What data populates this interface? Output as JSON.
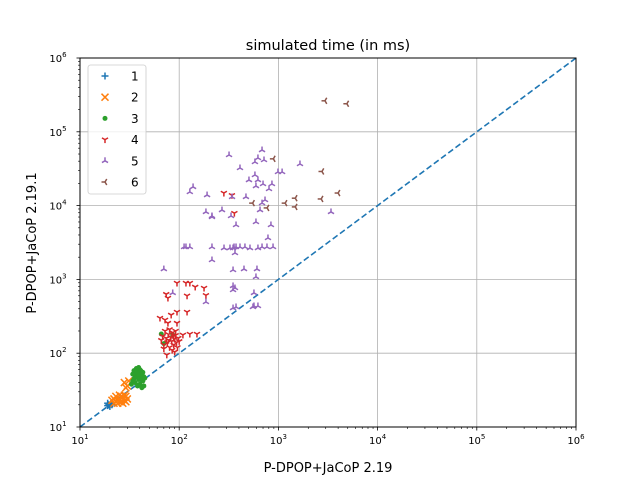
{
  "chart_data": {
    "type": "scatter",
    "title": "simulated time (in ms)",
    "xlabel": "P-DPOP+JaCoP 2.19",
    "ylabel": "P-DPOP+JaCoP 2.19.1",
    "xscale": "log",
    "yscale": "log",
    "xlim": [
      10,
      1000000
    ],
    "ylim": [
      10,
      1000000
    ],
    "grid": true,
    "legend_position": "top-left",
    "x_ticks": [
      {
        "value": 10,
        "base": "10",
        "exp": "1"
      },
      {
        "value": 100,
        "base": "10",
        "exp": "2"
      },
      {
        "value": 1000,
        "base": "10",
        "exp": "3"
      },
      {
        "value": 10000,
        "base": "10",
        "exp": "4"
      },
      {
        "value": 100000,
        "base": "10",
        "exp": "5"
      },
      {
        "value": 1000000,
        "base": "10",
        "exp": "6"
      }
    ],
    "y_ticks": [
      {
        "value": 10,
        "base": "10",
        "exp": "1"
      },
      {
        "value": 100,
        "base": "10",
        "exp": "2"
      },
      {
        "value": 1000,
        "base": "10",
        "exp": "3"
      },
      {
        "value": 10000,
        "base": "10",
        "exp": "4"
      },
      {
        "value": 100000,
        "base": "10",
        "exp": "5"
      },
      {
        "value": 1000000,
        "base": "10",
        "exp": "6"
      }
    ],
    "reference_line": {
      "style": "dashed",
      "color": "#1f77b4",
      "x": [
        10,
        1000000
      ],
      "y": [
        10,
        1000000
      ]
    },
    "series": [
      {
        "name": "1",
        "marker": "plus",
        "color": "#1f77b4",
        "points": [
          [
            19,
            19.5
          ],
          [
            19.5,
            20
          ],
          [
            20,
            19
          ],
          [
            20.5,
            20.5
          ],
          [
            19,
            21
          ],
          [
            21,
            20
          ]
        ]
      },
      {
        "name": "2",
        "marker": "x",
        "color": "#ff7f0e",
        "points": [
          [
            22,
            21
          ],
          [
            23,
            22
          ],
          [
            24,
            23
          ],
          [
            25,
            24
          ],
          [
            26,
            22
          ],
          [
            27,
            25
          ],
          [
            28,
            23
          ],
          [
            23,
            26
          ],
          [
            25,
            27
          ],
          [
            29,
            26
          ],
          [
            30,
            24
          ],
          [
            22,
            24
          ],
          [
            24,
            21
          ],
          [
            26,
            26
          ],
          [
            28,
            27
          ],
          [
            21,
            23
          ],
          [
            27,
            21
          ],
          [
            29,
            22
          ],
          [
            28,
            40
          ],
          [
            30,
            36
          ],
          [
            31,
            42
          ],
          [
            29,
            34
          ]
        ]
      },
      {
        "name": "3",
        "marker": "circle",
        "color": "#2ca02c",
        "points": [
          [
            33,
            38
          ],
          [
            34,
            42
          ],
          [
            35,
            45
          ],
          [
            36,
            50
          ],
          [
            37,
            55
          ],
          [
            38,
            48
          ],
          [
            39,
            52
          ],
          [
            40,
            60
          ],
          [
            41,
            45
          ],
          [
            42,
            50
          ],
          [
            43,
            55
          ],
          [
            44,
            48
          ],
          [
            45,
            46
          ],
          [
            36,
            40
          ],
          [
            38,
            36
          ],
          [
            40,
            38
          ],
          [
            42,
            34
          ],
          [
            44,
            36
          ],
          [
            35,
            58
          ],
          [
            37,
            62
          ],
          [
            39,
            64
          ],
          [
            41,
            58
          ],
          [
            34,
            52
          ],
          [
            43,
            42
          ],
          [
            39,
            44
          ],
          [
            66,
            182
          ],
          [
            86,
            177
          ],
          [
            70,
            135
          ]
        ]
      },
      {
        "name": "4",
        "marker": "tri_down",
        "color": "#d62728",
        "points": [
          [
            95,
            893
          ],
          [
            117,
            893
          ],
          [
            128,
            893
          ],
          [
            145,
            790
          ],
          [
            178,
            764
          ],
          [
            186,
            610
          ],
          [
            74,
            630
          ],
          [
            77,
            560
          ],
          [
            120,
            600
          ],
          [
            120,
            362
          ],
          [
            95,
            362
          ],
          [
            83,
            330
          ],
          [
            64,
            300
          ],
          [
            72,
            283
          ],
          [
            77,
            256
          ],
          [
            95,
            256
          ],
          [
            109,
            177
          ],
          [
            128,
            182
          ],
          [
            151,
            182
          ],
          [
            75,
            95
          ],
          [
            90,
            104
          ],
          [
            66,
            150
          ],
          [
            68,
            170
          ],
          [
            70,
            130
          ],
          [
            72,
            200
          ],
          [
            74,
            160
          ],
          [
            76,
            140
          ],
          [
            78,
            180
          ],
          [
            80,
            120
          ],
          [
            82,
            165
          ],
          [
            84,
            145
          ],
          [
            86,
            190
          ],
          [
            88,
            130
          ],
          [
            90,
            155
          ],
          [
            92,
            175
          ],
          [
            94,
            140
          ],
          [
            96,
            120
          ],
          [
            98,
            160
          ],
          [
            100,
            145
          ],
          [
            70,
            115
          ],
          [
            80,
            210
          ],
          [
            85,
            110
          ],
          [
            92,
            200
          ],
          [
            88,
            170
          ],
          [
            78,
            150
          ],
          [
            282,
            14800
          ],
          [
            360,
            7900
          ],
          [
            340,
            13800
          ]
        ]
      },
      {
        "name": "5",
        "marker": "tri_up",
        "color": "#9467bd",
        "points": [
          [
            138,
            17900
          ],
          [
            128,
            15300
          ],
          [
            191,
            13900
          ],
          [
            186,
            8200
          ],
          [
            214,
            7010
          ],
          [
            270,
            8700
          ],
          [
            283,
            2660
          ],
          [
            341,
            13100
          ],
          [
            471,
            13100
          ],
          [
            505,
            22200
          ],
          [
            653,
            8700
          ],
          [
            684,
            56600
          ],
          [
            733,
            11900
          ],
          [
            594,
            6000
          ],
          [
            622,
            44200
          ],
          [
            700,
            19600
          ],
          [
            804,
            16800
          ],
          [
            861,
            19600
          ],
          [
            990,
            28500
          ],
          [
            1090,
            28500
          ],
          [
            684,
            10800
          ],
          [
            785,
            3640
          ],
          [
            333,
            7230
          ],
          [
            374,
            5460
          ],
          [
            357,
            2750
          ],
          [
            365,
            2280
          ],
          [
            318,
            48500
          ],
          [
            410,
            32300
          ],
          [
            1650,
            36600
          ],
          [
            3390,
            8200
          ],
          [
            112,
            2750
          ],
          [
            117,
            2750
          ],
          [
            128,
            2750
          ],
          [
            214,
            2750
          ],
          [
            325,
            2660
          ],
          [
            349,
            2660
          ],
          [
            374,
            2750
          ],
          [
            410,
            2750
          ],
          [
            460,
            2750
          ],
          [
            517,
            2660
          ],
          [
            622,
            2660
          ],
          [
            767,
            2750
          ],
          [
            883,
            2750
          ],
          [
            684,
            2750
          ],
          [
            349,
            1340
          ],
          [
            365,
            764
          ],
          [
            349,
            718
          ],
          [
            608,
            1380
          ],
          [
            594,
            1080
          ],
          [
            349,
            815
          ],
          [
            567,
            655
          ],
          [
            554,
            423
          ],
          [
            567,
            436
          ],
          [
            622,
            436
          ],
          [
            374,
            423
          ],
          [
            70,
            1380
          ],
          [
            86,
            655
          ],
          [
            214,
            1830
          ],
          [
            186,
            494
          ],
          [
            450,
            1380
          ],
          [
            214,
            7230
          ],
          [
            716,
            41500
          ],
          [
            580,
            39000
          ],
          [
            580,
            26000
          ],
          [
            594,
            18400
          ],
          [
            622,
            22200
          ],
          [
            841,
            5460
          ],
          [
            349,
            409
          ]
        ]
      },
      {
        "name": "6",
        "marker": "tri_left",
        "color": "#8c564b",
        "points": [
          [
            890,
            43000
          ],
          [
            2750,
            29000
          ],
          [
            4000,
            14800
          ],
          [
            2700,
            12300
          ],
          [
            1480,
            12600
          ],
          [
            1480,
            9600
          ],
          [
            1170,
            10800
          ],
          [
            770,
            9300
          ],
          [
            550,
            10800
          ],
          [
            2950,
            263000
          ],
          [
            4900,
            240000
          ]
        ]
      }
    ]
  }
}
